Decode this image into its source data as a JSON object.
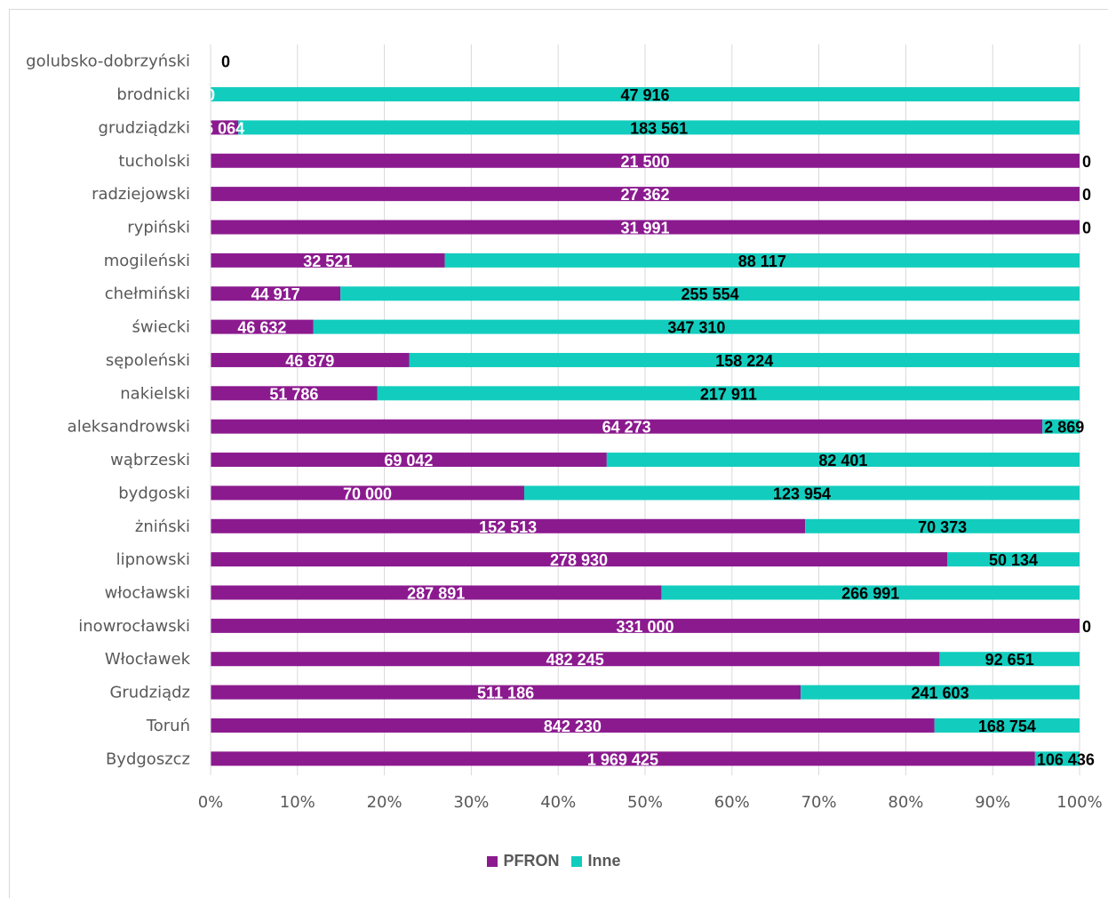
{
  "chart_data": {
    "type": "bar",
    "orientation": "horizontal",
    "stacking": "percent",
    "title": "",
    "categories": [
      "golubsko-dobrzyński",
      "brodnicki",
      "grudziądzki",
      "tucholski",
      "radziejowski",
      "rypiński",
      "mogileński",
      "chełmiński",
      "świecki",
      "sępoleński",
      "nakielski",
      "aleksandrowski",
      "wąbrzeski",
      "bydgoski",
      "żniński",
      "lipnowski",
      "włocławski",
      "inowrocławski",
      "Włocławek",
      "Grudziądz",
      "Toruń",
      "Bydgoszcz"
    ],
    "series": [
      {
        "name": "PFRON",
        "color": "#8B1A8F",
        "values": [
          0,
          0,
          6064,
          21500,
          27362,
          31991,
          32521,
          44917,
          46632,
          46879,
          51786,
          64273,
          69042,
          70000,
          152513,
          278930,
          287891,
          331000,
          482245,
          511186,
          842230,
          1969425
        ],
        "labels": [
          "",
          "0",
          "6 064",
          "21 500",
          "27 362",
          "31 991",
          "32 521",
          "44 917",
          "46 632",
          "46 879",
          "51 786",
          "64 273",
          "69 042",
          "70 000",
          "152 513",
          "278 930",
          "287 891",
          "331 000",
          "482 245",
          "511 186",
          "842 230",
          "1 969 425"
        ]
      },
      {
        "name": "Inne",
        "color": "#12CDBE",
        "values": [
          0,
          47916,
          183561,
          0,
          0,
          0,
          88117,
          255554,
          347310,
          158224,
          217911,
          2869,
          82401,
          123954,
          70373,
          50134,
          266991,
          0,
          92651,
          241603,
          168754,
          106436
        ],
        "labels": [
          "0",
          "47 916",
          "183 561",
          "0",
          "0",
          "0",
          "88 117",
          "255 554",
          "347 310",
          "158 224",
          "217 911",
          "2 869",
          "82 401",
          "123 954",
          "70 373",
          "50 134",
          "266 991",
          "0",
          "92 651",
          "241 603",
          "168 754",
          "106 436"
        ]
      }
    ],
    "x_ticks": [
      "0%",
      "10%",
      "20%",
      "30%",
      "40%",
      "50%",
      "60%",
      "70%",
      "80%",
      "90%",
      "100%"
    ],
    "xlim": [
      0,
      100
    ],
    "grid": true,
    "legend_position": "bottom"
  },
  "legend": [
    {
      "label": "PFRON",
      "color": "#8B1A8F"
    },
    {
      "label": "Inne",
      "color": "#12CDBE"
    }
  ]
}
